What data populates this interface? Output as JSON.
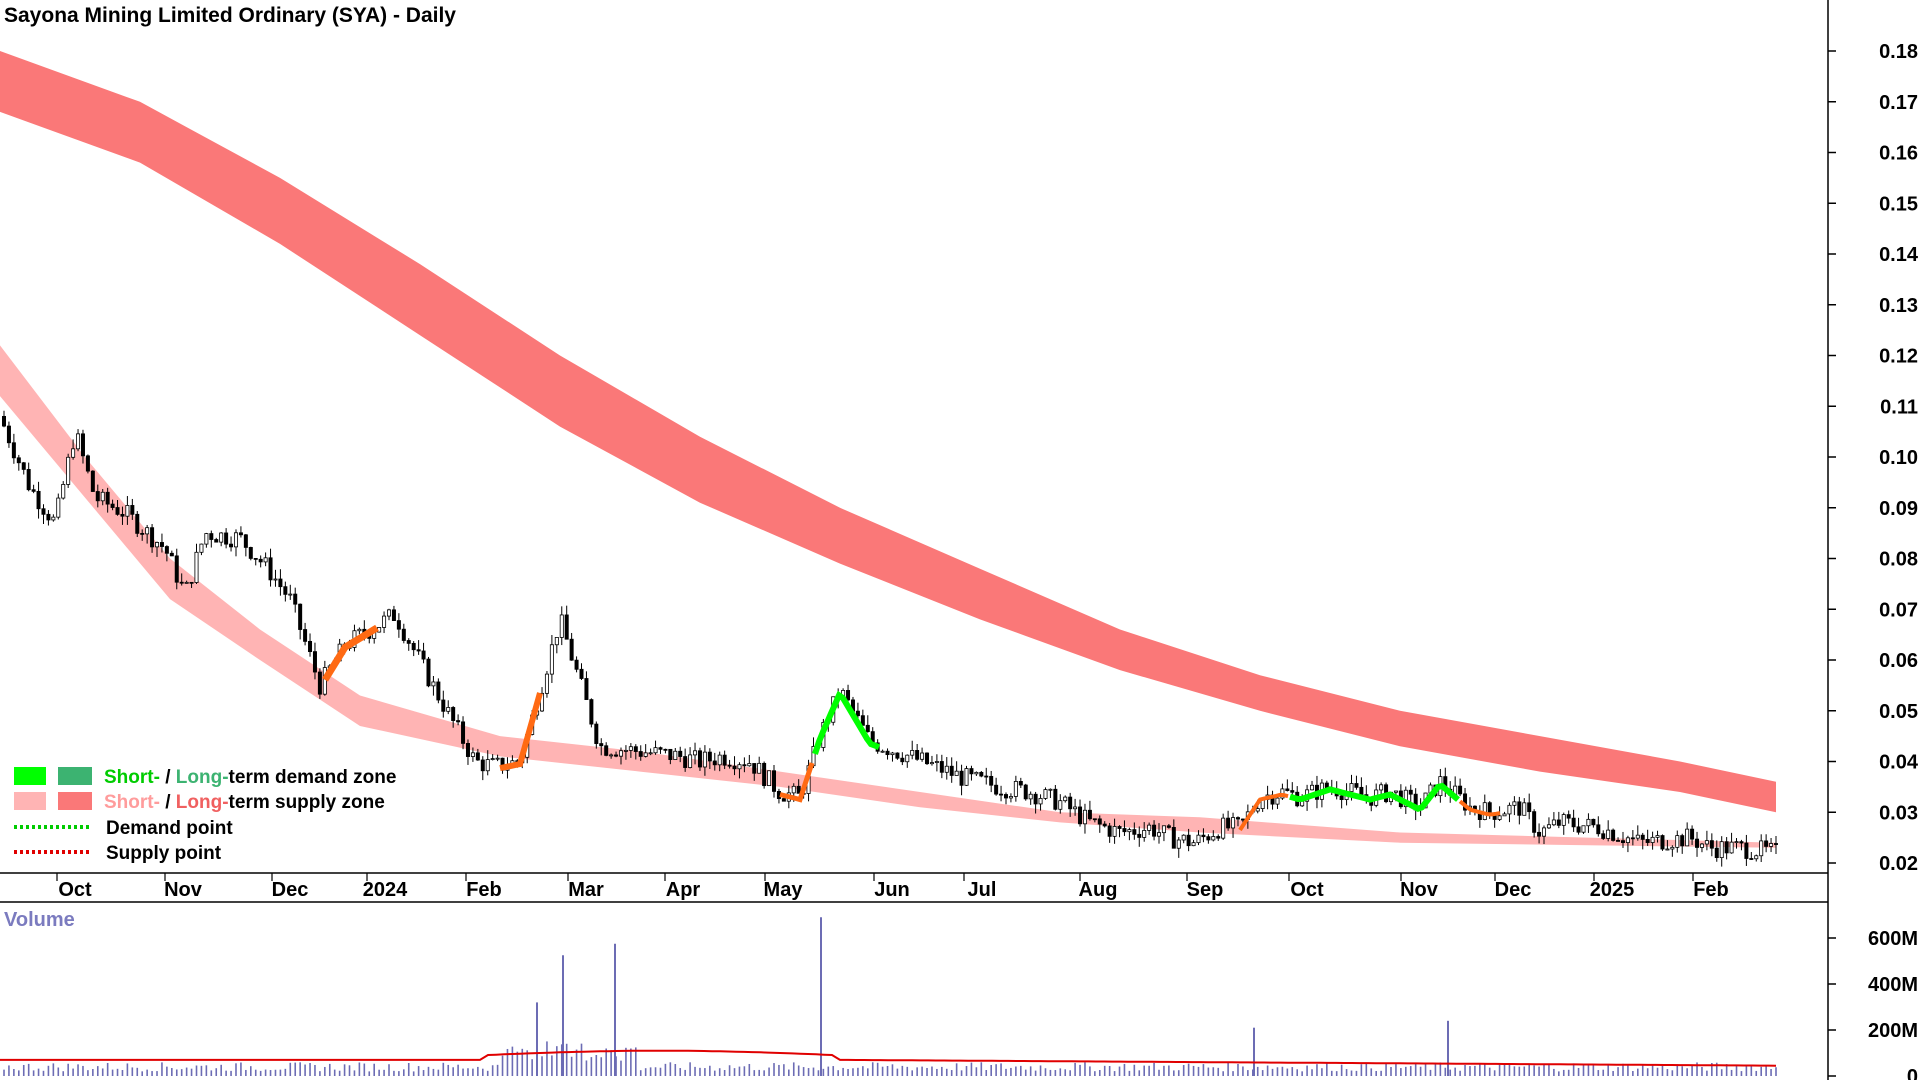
{
  "chart_data": {
    "type": "candlestick",
    "title": "Sayona Mining Limited Ordinary (SYA) - Daily",
    "price_axis": {
      "ticks": [
        0.02,
        0.03,
        0.04,
        0.05,
        0.06,
        0.07,
        0.08,
        0.09,
        0.1,
        0.11,
        0.12,
        0.13,
        0.14,
        0.15,
        0.16,
        0.17,
        0.18
      ],
      "labels": [
        "0.02",
        "0.03",
        "0.04",
        "0.05",
        "0.06",
        "0.07",
        "0.08",
        "0.09",
        "0.10",
        "0.11",
        "0.12",
        "0.13",
        "0.14",
        "0.15",
        "0.16",
        "0.17",
        "0.18"
      ]
    },
    "x_axis": {
      "labels": [
        "Oct",
        "Nov",
        "Dec",
        "2024",
        "Feb",
        "Mar",
        "Apr",
        "May",
        "Jun",
        "Jul",
        "Aug",
        "Sep",
        "Oct",
        "Nov",
        "Dec",
        "2025",
        "Feb"
      ]
    },
    "close_series": [
      {
        "x": "Oct",
        "y": 0.106
      },
      {
        "x": "Oct",
        "y": 0.092
      },
      {
        "x": "Nov",
        "y": 0.085
      },
      {
        "x": "Nov",
        "y": 0.087
      },
      {
        "x": "Dec",
        "y": 0.062
      },
      {
        "x": "Dec",
        "y": 0.055
      },
      {
        "x": "2024",
        "y": 0.067
      },
      {
        "x": "2024",
        "y": 0.063
      },
      {
        "x": "Feb",
        "y": 0.04
      },
      {
        "x": "Feb",
        "y": 0.068
      },
      {
        "x": "Mar",
        "y": 0.043
      },
      {
        "x": "Mar",
        "y": 0.042
      },
      {
        "x": "Apr",
        "y": 0.04
      },
      {
        "x": "Apr",
        "y": 0.034
      },
      {
        "x": "May",
        "y": 0.045
      },
      {
        "x": "May",
        "y": 0.043
      },
      {
        "x": "Jun",
        "y": 0.038
      },
      {
        "x": "Jul",
        "y": 0.034
      },
      {
        "x": "Aug",
        "y": 0.026
      },
      {
        "x": "Aug",
        "y": 0.027
      },
      {
        "x": "Sep",
        "y": 0.024
      },
      {
        "x": "Oct",
        "y": 0.034
      },
      {
        "x": "Oct",
        "y": 0.034
      },
      {
        "x": "Nov",
        "y": 0.033
      },
      {
        "x": "Nov",
        "y": 0.035
      },
      {
        "x": "Dec",
        "y": 0.03
      },
      {
        "x": "2025",
        "y": 0.027
      },
      {
        "x": "Feb",
        "y": 0.024
      },
      {
        "x": "Feb",
        "y": 0.022
      }
    ],
    "long_term_supply_zone": {
      "upper": [
        0.18,
        0.17,
        0.155,
        0.138,
        0.12,
        0.104,
        0.09,
        0.078,
        0.066,
        0.057,
        0.05,
        0.045,
        0.04,
        0.036
      ],
      "lower": [
        0.168,
        0.158,
        0.142,
        0.124,
        0.106,
        0.091,
        0.079,
        0.068,
        0.058,
        0.05,
        0.043,
        0.038,
        0.034,
        0.03
      ]
    },
    "short_term_supply_zone": {
      "upper": [
        0.122,
        0.1,
        0.08,
        0.066,
        0.053,
        0.045,
        0.042,
        0.038,
        0.034,
        0.03,
        0.029,
        0.026,
        0.024
      ],
      "lower": [
        0.112,
        0.092,
        0.072,
        0.06,
        0.047,
        0.041,
        0.038,
        0.035,
        0.031,
        0.028,
        0.026,
        0.024,
        0.023
      ]
    },
    "volume_axis": {
      "title": "Volume",
      "ticks": [
        "600M",
        "400M",
        "200M",
        "0"
      ]
    },
    "volume_spikes_M": [
      {
        "x": "Feb",
        "value": 320
      },
      {
        "x": "Feb",
        "value": 525
      },
      {
        "x": "Mar",
        "value": 575
      },
      {
        "x": "May",
        "value": 690
      },
      {
        "x": "Sep",
        "value": 210
      },
      {
        "x": "Nov",
        "value": 240
      }
    ],
    "colors": {
      "long_supply": "#fa7878",
      "short_supply": "#ffb4b4",
      "short_demand": "#00ff00",
      "long_demand": "#3cb371",
      "supply_point": "#ff6a13",
      "volume_bar": "#6c6cb4",
      "volume_ma": "#e00000"
    },
    "legend": [
      {
        "short": "Short-",
        "sep": " / ",
        "long": "Long-",
        "rest": "term demand zone",
        "short_color": "#00cc00",
        "long_color": "#3cb371",
        "swatch_short": "#00ff00",
        "swatch_long": "#3cb371"
      },
      {
        "short": "Short-",
        "sep": " / ",
        "long": "Long-",
        "rest": "term supply zone",
        "short_color": "#ff9c9c",
        "long_color": "#f06060",
        "swatch_short": "#ffb4b4",
        "swatch_long": "#fa7878"
      },
      {
        "label": "Demand point",
        "dot_color": "#00cc00"
      },
      {
        "label": "Supply point",
        "dot_color": "#e00000"
      }
    ]
  }
}
